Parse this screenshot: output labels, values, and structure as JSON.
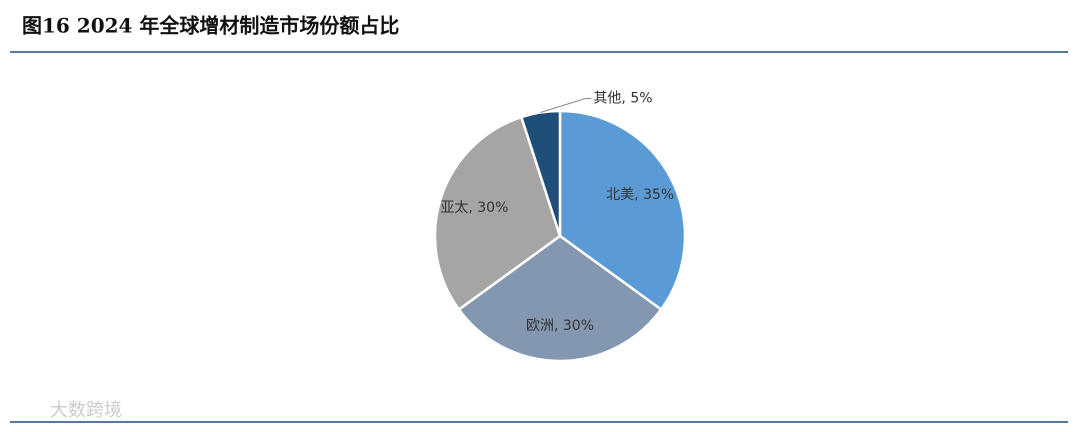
{
  "chart_data": {
    "type": "pie",
    "title": "图16  2024 年全球增材制造市场份额占比",
    "values": [
      35,
      30,
      30,
      5
    ],
    "value_labels": [
      "北美, 35%",
      "欧洲, 30%",
      "亚太, 30%",
      "其他, 5%"
    ],
    "colors": [
      "#5b9bd5",
      "#8497b0",
      "#a5a5a5",
      "#1f4e79"
    ]
  },
  "watermark": "大数跨境"
}
